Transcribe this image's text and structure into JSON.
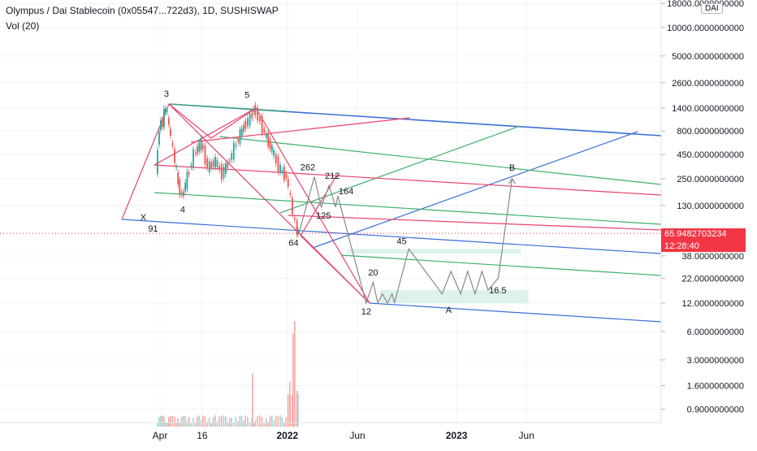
{
  "header": {
    "symbol_line": "Olympus / Dai Stablecoin (0x05547...722d3), 1D, SUSHISWAP",
    "volume_label": "Vol (20)",
    "currency_badge": "DAI"
  },
  "price_badge": {
    "price": "65.9482703234",
    "countdown": "12:28:40"
  },
  "colors": {
    "blue_line": "#3b6fd6",
    "red_line": "#e8426b",
    "green_line": "#3fb06a",
    "projection": "#888888",
    "last_price": "#f23645",
    "box_fill": "#d6efe8",
    "candle_up": "#26a69a",
    "candle_down": "#ef5350"
  },
  "chart_data": {
    "type": "candlestick",
    "title": "Olympus / Dai Stablecoin (0x05547...722d3), 1D, SUSHISWAP",
    "y_scale": "log",
    "y_tick_labels": [
      "18000.0000000000",
      "10000.0000000000",
      "5000.0000000000",
      "2600.0000000000",
      "1400.0000000000",
      "800.0000000000",
      "450.0000000000",
      "250.0000000000",
      "130.0000000000",
      "65.9482703234",
      "38.0000000000",
      "22.0000000000",
      "12.0000000000",
      "6.0000000000",
      "3.0000000000",
      "1.6000000000",
      "0.9000000000"
    ],
    "y_ticks": [
      18000,
      10000,
      5000,
      2600,
      1400,
      800,
      450,
      250,
      130,
      38,
      22,
      12,
      6,
      3,
      1.6,
      0.9
    ],
    "x_tick_labels": [
      "Apr",
      "16",
      "2022",
      "Jun",
      "2023",
      "Jun"
    ],
    "x_tick_dates": [
      "2021-04-01",
      "2021-07-01",
      "2022-01-01",
      "2022-06-01",
      "2023-01-01",
      "2023-06-01"
    ],
    "last_price": 65.9482703234,
    "wave_labels": [
      {
        "label": "X",
        "date": "2021-03-10",
        "price": 91
      },
      {
        "label": "91",
        "date": "2021-03-10",
        "price": 91
      },
      {
        "label": "3",
        "date": "2021-04-15",
        "price": 1450
      },
      {
        "label": "4",
        "date": "2021-05-20",
        "price": 150
      },
      {
        "label": "5",
        "date": "2021-10-20",
        "price": 1420
      },
      {
        "label": "64",
        "date": "2022-01-25",
        "price": 64
      },
      {
        "label": "262",
        "date": "2022-02-28",
        "price": 262
      },
      {
        "label": "212",
        "date": "2022-04-01",
        "price": 212
      },
      {
        "label": "125",
        "date": "2022-03-20",
        "price": 125
      },
      {
        "label": "164",
        "date": "2022-04-20",
        "price": 164
      },
      {
        "label": "12",
        "date": "2022-06-20",
        "price": 12
      },
      {
        "label": "20",
        "date": "2022-07-05",
        "price": 20
      },
      {
        "label": "45",
        "date": "2022-09-15",
        "price": 45
      },
      {
        "label": "A",
        "date": "2022-12-15",
        "price": 12
      },
      {
        "label": "16.5",
        "date": "2023-03-10",
        "price": 16.5
      },
      {
        "label": "B",
        "date": "2023-05-01",
        "price": 250
      }
    ],
    "projection_path": [
      {
        "date": "2022-01-25",
        "price": 64
      },
      {
        "date": "2022-02-28",
        "price": 262
      },
      {
        "date": "2022-03-15",
        "price": 125
      },
      {
        "date": "2022-04-01",
        "price": 212
      },
      {
        "date": "2022-04-15",
        "price": 125
      },
      {
        "date": "2022-04-20",
        "price": 164
      },
      {
        "date": "2022-06-20",
        "price": 12
      },
      {
        "date": "2022-07-05",
        "price": 20
      },
      {
        "date": "2022-07-15",
        "price": 12
      },
      {
        "date": "2022-07-25",
        "price": 15
      },
      {
        "date": "2022-08-05",
        "price": 12
      },
      {
        "date": "2022-08-15",
        "price": 15
      },
      {
        "date": "2022-08-20",
        "price": 12
      },
      {
        "date": "2022-09-20",
        "price": 45
      },
      {
        "date": "2022-12-01",
        "price": 15
      },
      {
        "date": "2022-12-20",
        "price": 26
      },
      {
        "date": "2023-01-10",
        "price": 15
      },
      {
        "date": "2023-01-25",
        "price": 26
      },
      {
        "date": "2023-02-10",
        "price": 15
      },
      {
        "date": "2023-02-25",
        "price": 26
      },
      {
        "date": "2023-03-10",
        "price": 16.5
      },
      {
        "date": "2023-04-01",
        "price": 22
      },
      {
        "date": "2023-05-01",
        "price": 250
      }
    ],
    "price_series": [
      {
        "date": "2021-03-25",
        "price": 280
      },
      {
        "date": "2021-04-01",
        "price": 900
      },
      {
        "date": "2021-04-08",
        "price": 1000
      },
      {
        "date": "2021-04-15",
        "price": 1450
      },
      {
        "date": "2021-04-22",
        "price": 900
      },
      {
        "date": "2021-05-01",
        "price": 500
      },
      {
        "date": "2021-05-12",
        "price": 220
      },
      {
        "date": "2021-05-20",
        "price": 160
      },
      {
        "date": "2021-06-01",
        "price": 260
      },
      {
        "date": "2021-06-15",
        "price": 450
      },
      {
        "date": "2021-07-01",
        "price": 600
      },
      {
        "date": "2021-07-15",
        "price": 330
      },
      {
        "date": "2021-08-01",
        "price": 380
      },
      {
        "date": "2021-08-15",
        "price": 280
      },
      {
        "date": "2021-09-01",
        "price": 400
      },
      {
        "date": "2021-09-15",
        "price": 600
      },
      {
        "date": "2021-10-01",
        "price": 900
      },
      {
        "date": "2021-10-15",
        "price": 1100
      },
      {
        "date": "2021-10-22",
        "price": 1400
      },
      {
        "date": "2021-11-01",
        "price": 1150
      },
      {
        "date": "2021-11-15",
        "price": 750
      },
      {
        "date": "2021-12-01",
        "price": 500
      },
      {
        "date": "2021-12-15",
        "price": 330
      },
      {
        "date": "2022-01-01",
        "price": 260
      },
      {
        "date": "2022-01-10",
        "price": 150
      },
      {
        "date": "2022-01-20",
        "price": 80
      },
      {
        "date": "2022-01-25",
        "price": 64
      }
    ]
  }
}
